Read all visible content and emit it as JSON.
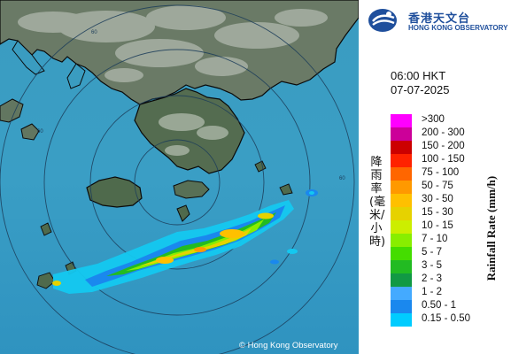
{
  "header": {
    "org_name_zh": "香港天文台",
    "org_name_en": "HONG KONG OBSERVATORY"
  },
  "timestamp": {
    "time": "06:00 HKT",
    "date": "07-07-2025"
  },
  "legend": {
    "title_zh": "降雨率(毫米/小時)",
    "title_en": "Rainfall Rate (mm/h)",
    "items": [
      {
        "label": ">300",
        "color": "#ff00ff"
      },
      {
        "label": "200 - 300",
        "color": "#cc0099"
      },
      {
        "label": "150 - 200",
        "color": "#cc0000"
      },
      {
        "label": "100 - 150",
        "color": "#ff2200"
      },
      {
        "label": "75 - 100",
        "color": "#ff6600"
      },
      {
        "label": "50 - 75",
        "color": "#ff9900"
      },
      {
        "label": "30 - 50",
        "color": "#ffc000"
      },
      {
        "label": "15 - 30",
        "color": "#e6d200"
      },
      {
        "label": "10 - 15",
        "color": "#ccee00"
      },
      {
        "label": "7 - 10",
        "color": "#88ee00"
      },
      {
        "label": "5 - 7",
        "color": "#44dd00"
      },
      {
        "label": "3 - 5",
        "color": "#22bb22"
      },
      {
        "label": "2 - 3",
        "color": "#119944"
      },
      {
        "label": "1 - 2",
        "color": "#44aaff"
      },
      {
        "label": "0.50 - 1",
        "color": "#1a88ee"
      },
      {
        "label": "0.15 - 0.50",
        "color": "#00ccff"
      }
    ]
  },
  "map": {
    "range_ring_label": "60",
    "copyright": "© Hong Kong Observatory"
  }
}
